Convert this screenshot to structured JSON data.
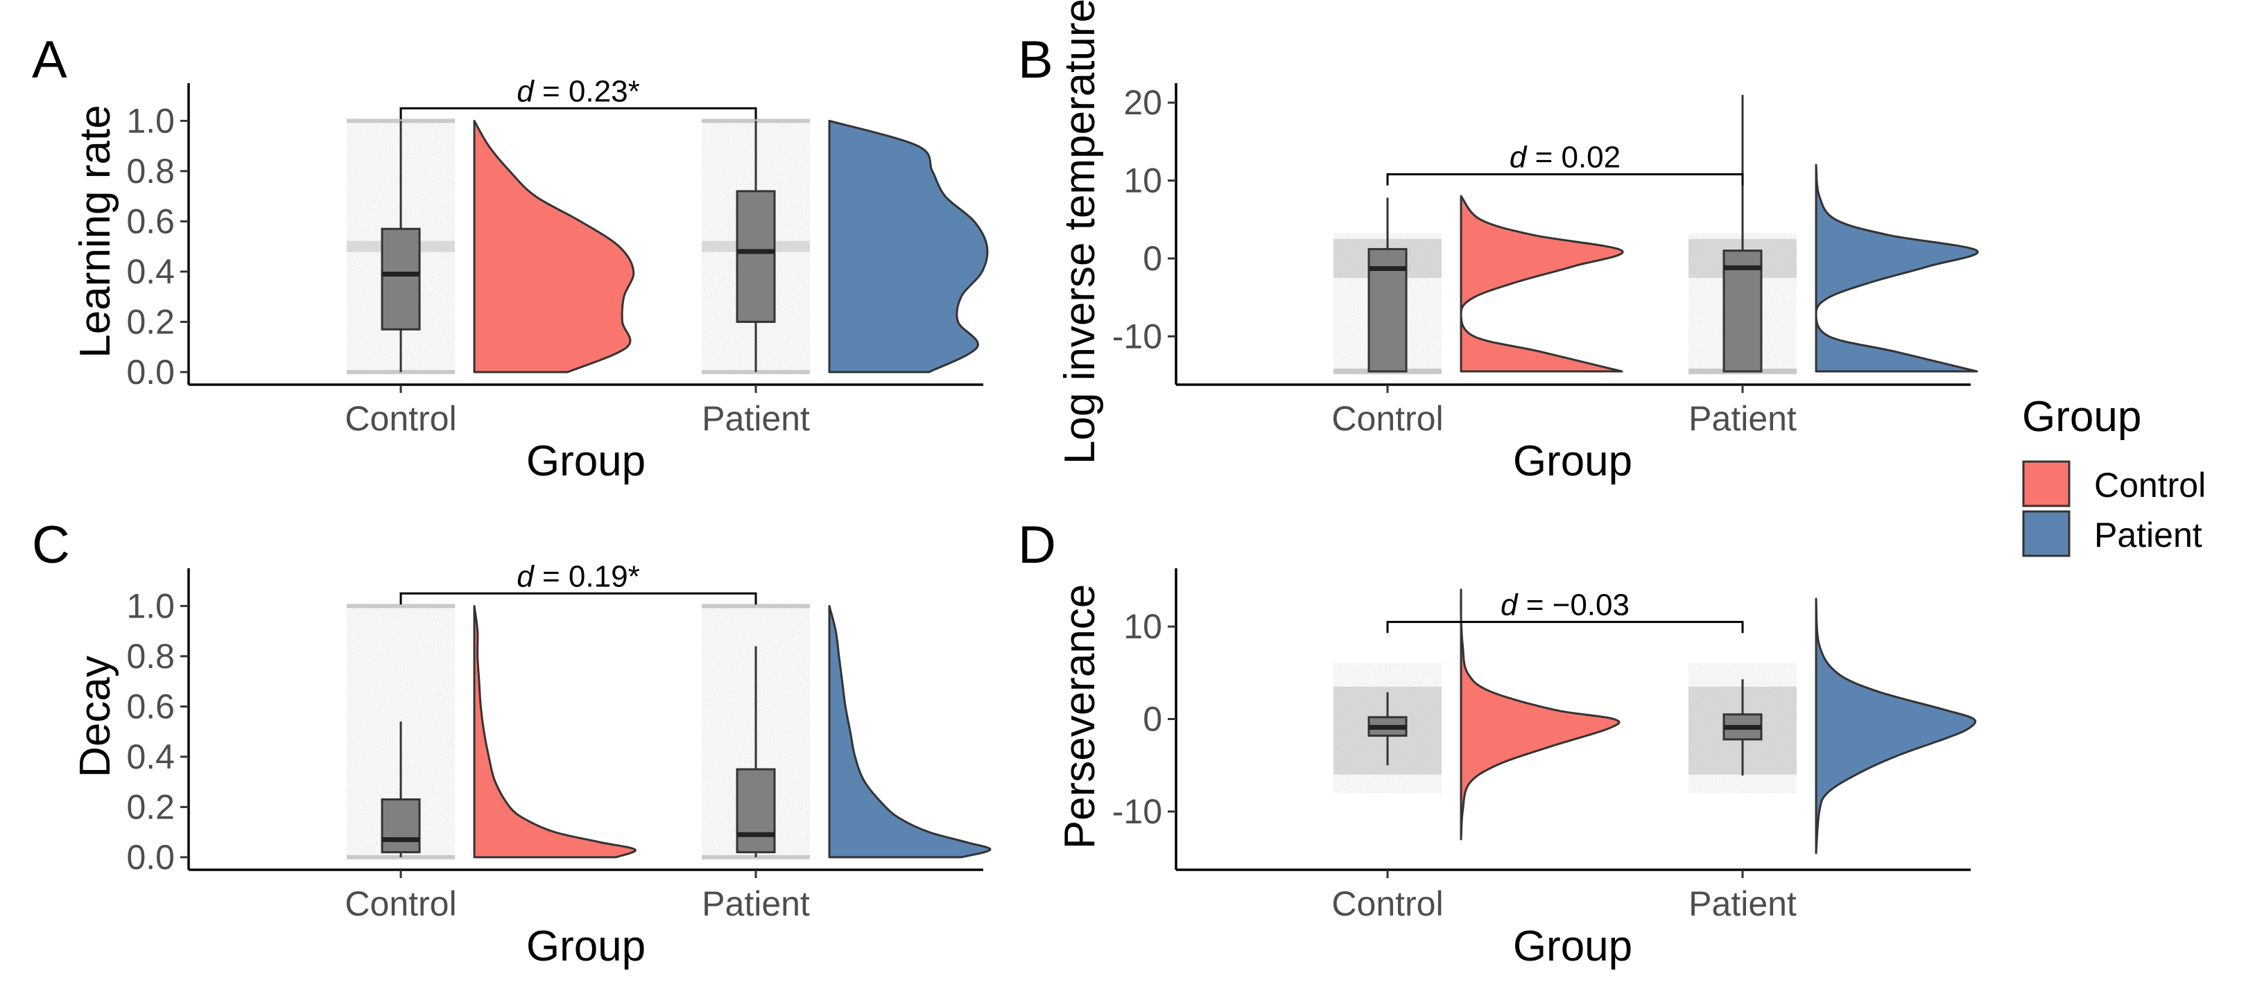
{
  "legend": {
    "title": "Group",
    "items": [
      {
        "label": "Control",
        "color": "#F8766D"
      },
      {
        "label": "Patient",
        "color": "#5B84B1"
      }
    ]
  },
  "colors": {
    "control": "#F8766D",
    "patient": "#5B84B1",
    "box": "#808080",
    "jitter": "#bdbdbd"
  },
  "chart_data": [
    {
      "panel": "A",
      "type": "raincloud",
      "xlabel": "Group",
      "ylabel": "Learning rate",
      "categories": [
        "Control",
        "Patient"
      ],
      "ylim": [
        -0.05,
        1.15
      ],
      "yticks": [
        0.0,
        0.2,
        0.4,
        0.6,
        0.8,
        1.0
      ],
      "ytick_labels": [
        "0.0",
        "0.2",
        "0.4",
        "0.6",
        "0.8",
        "1.0"
      ],
      "box": [
        {
          "group": "Control",
          "whisker_low": 0.0,
          "q1": 0.17,
          "median": 0.39,
          "q3": 0.57,
          "whisker_high": 1.0
        },
        {
          "group": "Patient",
          "whisker_low": 0.0,
          "q1": 0.2,
          "median": 0.48,
          "q3": 0.72,
          "whisker_high": 1.0
        }
      ],
      "density_range": [
        0.0,
        1.0
      ],
      "density": [
        {
          "group": "Control",
          "y": [
            0.0,
            0.1,
            0.2,
            0.3,
            0.4,
            0.5,
            0.6,
            0.7,
            0.8,
            0.9,
            1.0
          ],
          "w": [
            0.58,
            0.95,
            0.92,
            0.93,
            0.99,
            0.9,
            0.66,
            0.38,
            0.22,
            0.09,
            0.0
          ]
        },
        {
          "group": "Patient",
          "y": [
            0.0,
            0.1,
            0.2,
            0.3,
            0.4,
            0.5,
            0.6,
            0.7,
            0.8,
            0.9,
            1.0
          ],
          "w": [
            0.62,
            0.92,
            0.8,
            0.82,
            0.95,
            0.98,
            0.9,
            0.72,
            0.64,
            0.55,
            0.0
          ]
        }
      ],
      "annotation": {
        "d": "0.23",
        "sig": "*",
        "y": 1.05
      }
    },
    {
      "panel": "B",
      "type": "raincloud",
      "xlabel": "Group",
      "ylabel": "Log inverse temperature",
      "categories": [
        "Control",
        "Patient"
      ],
      "ylim": [
        -16.2,
        22.5
      ],
      "yticks": [
        -10,
        0,
        10,
        20
      ],
      "ytick_labels": [
        "-10",
        "0",
        "10",
        "20"
      ],
      "box": [
        {
          "group": "Control",
          "whisker_low": -14.5,
          "q1": -14.5,
          "median": -1.3,
          "q3": 1.2,
          "whisker_high": 7.8
        },
        {
          "group": "Patient",
          "whisker_low": -14.5,
          "q1": -14.5,
          "median": -1.2,
          "q3": 1.0,
          "whisker_high": 21.0
        }
      ],
      "density_range": [
        -14.5,
        8.0
      ],
      "density": [
        {
          "group": "Control",
          "y": [
            -14.5,
            -12,
            -10,
            -7,
            -5,
            -3,
            -1,
            1,
            3,
            5,
            8
          ],
          "w": [
            1.0,
            0.5,
            0.08,
            0.0,
            0.08,
            0.35,
            0.7,
            1.0,
            0.45,
            0.12,
            0.0
          ]
        },
        {
          "group": "Patient",
          "y": [
            -14.5,
            -12,
            -10,
            -7,
            -5,
            -3,
            -1,
            1,
            3,
            5,
            8,
            12
          ],
          "w": [
            1.0,
            0.5,
            0.08,
            0.0,
            0.08,
            0.35,
            0.7,
            1.0,
            0.45,
            0.12,
            0.02,
            0.0
          ]
        }
      ],
      "annotation": {
        "d": "0.02",
        "sig": "",
        "y": 10.8
      }
    },
    {
      "panel": "C",
      "type": "raincloud",
      "xlabel": "Group",
      "ylabel": "Decay",
      "categories": [
        "Control",
        "Patient"
      ],
      "ylim": [
        -0.05,
        1.15
      ],
      "yticks": [
        0.0,
        0.2,
        0.4,
        0.6,
        0.8,
        1.0
      ],
      "ytick_labels": [
        "0.0",
        "0.2",
        "0.4",
        "0.6",
        "0.8",
        "1.0"
      ],
      "box": [
        {
          "group": "Control",
          "whisker_low": 0.0,
          "q1": 0.02,
          "median": 0.07,
          "q3": 0.23,
          "whisker_high": 0.54
        },
        {
          "group": "Patient",
          "whisker_low": 0.0,
          "q1": 0.02,
          "median": 0.09,
          "q3": 0.35,
          "whisker_high": 0.84
        }
      ],
      "density_range": [
        0.0,
        1.0
      ],
      "density": [
        {
          "group": "Control",
          "y": [
            0.0,
            0.03,
            0.06,
            0.1,
            0.15,
            0.2,
            0.3,
            0.4,
            0.5,
            0.6,
            0.7,
            0.8,
            0.9,
            1.0
          ],
          "w": [
            0.88,
            1.0,
            0.78,
            0.5,
            0.32,
            0.22,
            0.13,
            0.09,
            0.06,
            0.04,
            0.03,
            0.02,
            0.02,
            0.0
          ]
        },
        {
          "group": "Patient",
          "y": [
            0.0,
            0.03,
            0.06,
            0.1,
            0.15,
            0.2,
            0.3,
            0.4,
            0.5,
            0.6,
            0.7,
            0.8,
            0.9,
            1.0
          ],
          "w": [
            0.82,
            1.0,
            0.85,
            0.62,
            0.45,
            0.35,
            0.22,
            0.16,
            0.13,
            0.1,
            0.08,
            0.06,
            0.04,
            0.0
          ]
        }
      ],
      "annotation": {
        "d": "0.19",
        "sig": "*",
        "y": 1.05
      }
    },
    {
      "panel": "D",
      "type": "raincloud",
      "xlabel": "Group",
      "ylabel": "Perseverance",
      "categories": [
        "Control",
        "Patient"
      ],
      "ylim": [
        -16.3,
        16.3
      ],
      "yticks": [
        -10,
        0,
        10
      ],
      "ytick_labels": [
        "-10",
        "0",
        "10"
      ],
      "box": [
        {
          "group": "Control",
          "whisker_low": -5.0,
          "q1": -1.8,
          "median": -0.9,
          "q3": 0.2,
          "whisker_high": 2.9
        },
        {
          "group": "Patient",
          "whisker_low": -6.1,
          "q1": -2.2,
          "median": -0.9,
          "q3": 0.5,
          "whisker_high": 4.3
        }
      ],
      "density_range": [
        -13.0,
        14.0
      ],
      "density": [
        {
          "group": "Control",
          "y": [
            -13,
            -10,
            -7,
            -5,
            -3,
            -1,
            0,
            1,
            3,
            5,
            8,
            11,
            14
          ],
          "w": [
            0.0,
            0.01,
            0.05,
            0.22,
            0.55,
            0.92,
            0.95,
            0.58,
            0.18,
            0.04,
            0.01,
            0.0,
            0.0
          ]
        },
        {
          "group": "Patient",
          "y": [
            -14.5,
            -10,
            -8,
            -6,
            -4,
            -2,
            -1,
            0,
            1,
            3,
            5,
            8,
            13
          ],
          "w": [
            0.0,
            0.02,
            0.07,
            0.25,
            0.5,
            0.82,
            0.95,
            0.98,
            0.8,
            0.38,
            0.13,
            0.02,
            0.0
          ]
        }
      ],
      "annotation": {
        "d": "−0.03",
        "sig": "",
        "y": 10.5
      }
    }
  ]
}
